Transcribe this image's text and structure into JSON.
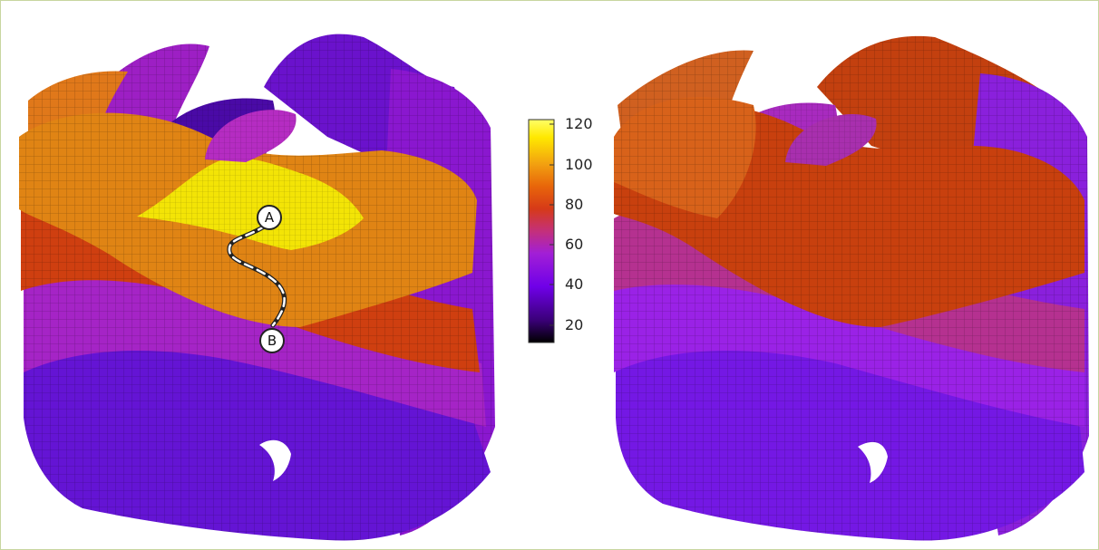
{
  "colorbar": {
    "ticks": [
      "120",
      "100",
      "80",
      "60",
      "40",
      "20"
    ],
    "range": [
      10,
      125
    ],
    "palette": [
      "#000000",
      "#3a0078",
      "#6f00e8",
      "#a21fd6",
      "#c4307a",
      "#d63a18",
      "#e8650a",
      "#f2a010",
      "#ffe800",
      "#ffff66"
    ]
  },
  "markers": {
    "a": "A",
    "b": "B"
  },
  "colors": {
    "yellow": "#f3e406",
    "orange": "#e88a12",
    "red": "#d24a0c",
    "magenta": "#a426c6",
    "purple": "#7a16d6",
    "violet": "#5a0fb8",
    "border": "#c8d6a0"
  }
}
